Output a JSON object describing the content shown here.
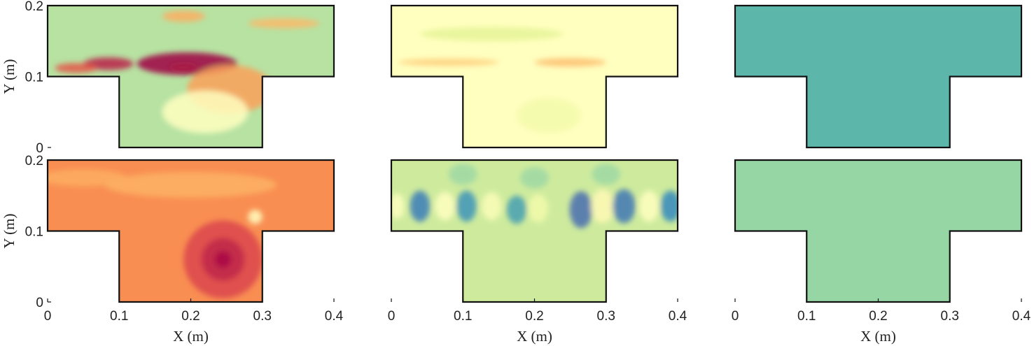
{
  "chart_data": {
    "type": "heatmap",
    "layout": "2x3 grid of field snapshots",
    "geometry": {
      "domain_x": [
        0,
        0.4
      ],
      "domain_y": [
        0,
        0.2
      ],
      "channel_y": [
        0.1,
        0.2
      ],
      "cavity_x": [
        0.1,
        0.3
      ],
      "cavity_y": [
        0,
        0.1
      ]
    },
    "colormap": [
      "#9e0142",
      "#d53e4f",
      "#f46d43",
      "#fdae61",
      "#fee08b",
      "#ffffbf",
      "#e6f598",
      "#abdda4",
      "#66c2a5",
      "#3288bd",
      "#5e4fa2"
    ],
    "xlabel": "X (m)",
    "ylabel": "Y (m)",
    "xticks": [
      "0",
      "0.1",
      "0.2",
      "0.3",
      "0.4"
    ],
    "yticks": [
      "0",
      "0.1",
      "0.2"
    ],
    "panels": [
      {
        "row": 0,
        "col": 0,
        "field": "particle vortex snapshot",
        "base_level": 0.68,
        "features": [
          {
            "x": 0.085,
            "y": 0.118,
            "rx": 0.035,
            "ry": 0.009,
            "level": 0.05
          },
          {
            "x": 0.04,
            "y": 0.112,
            "rx": 0.03,
            "ry": 0.007,
            "level": 0.15
          },
          {
            "x": 0.19,
            "y": 0.113,
            "rx": 0.02,
            "ry": 0.005,
            "level": 0.25
          },
          {
            "x": 0.195,
            "y": 0.118,
            "rx": 0.07,
            "ry": 0.016,
            "level": 0.0
          },
          {
            "x": 0.255,
            "y": 0.082,
            "rx": 0.06,
            "ry": 0.034,
            "level": 0.28
          },
          {
            "x": 0.19,
            "y": 0.185,
            "rx": 0.03,
            "ry": 0.008,
            "level": 0.3
          },
          {
            "x": 0.33,
            "y": 0.175,
            "rx": 0.05,
            "ry": 0.007,
            "level": 0.32
          },
          {
            "x": 0.22,
            "y": 0.05,
            "rx": 0.06,
            "ry": 0.03,
            "level": 0.5
          }
        ]
      },
      {
        "row": 0,
        "col": 1,
        "field": "particle vortex snapshot",
        "base_level": 0.5,
        "features": [
          {
            "x": 0.25,
            "y": 0.12,
            "rx": 0.05,
            "ry": 0.006,
            "level": 0.33
          },
          {
            "x": 0.08,
            "y": 0.12,
            "rx": 0.07,
            "ry": 0.005,
            "level": 0.36
          },
          {
            "x": 0.22,
            "y": 0.045,
            "rx": 0.045,
            "ry": 0.025,
            "level": 0.55
          },
          {
            "x": 0.14,
            "y": 0.16,
            "rx": 0.1,
            "ry": 0.01,
            "level": 0.6
          }
        ]
      },
      {
        "row": 0,
        "col": 2,
        "field": "uniform field",
        "base_level": 0.82,
        "features": []
      },
      {
        "row": 1,
        "col": 0,
        "field": "smooth contour field",
        "base_level": 0.25,
        "features": [
          {
            "x": 0.245,
            "y": 0.06,
            "rx": 0.055,
            "ry": 0.055,
            "level": 0.12
          },
          {
            "x": 0.245,
            "y": 0.06,
            "rx": 0.03,
            "ry": 0.03,
            "level": 0.06
          },
          {
            "x": 0.245,
            "y": 0.06,
            "rx": 0.012,
            "ry": 0.012,
            "level": 0.02
          },
          {
            "x": 0.29,
            "y": 0.12,
            "rx": 0.01,
            "ry": 0.01,
            "level": 0.5
          },
          {
            "x": 0.2,
            "y": 0.165,
            "rx": 0.12,
            "ry": 0.018,
            "level": 0.31
          },
          {
            "x": 0.05,
            "y": 0.175,
            "rx": 0.06,
            "ry": 0.012,
            "level": 0.3
          }
        ]
      },
      {
        "row": 1,
        "col": 1,
        "field": "alternating mode",
        "base_level": 0.64,
        "features": [
          {
            "x": 0.008,
            "y": 0.135,
            "rx": 0.01,
            "ry": 0.018,
            "level": 0.5
          },
          {
            "x": 0.04,
            "y": 0.135,
            "rx": 0.014,
            "ry": 0.022,
            "level": 0.92
          },
          {
            "x": 0.075,
            "y": 0.135,
            "rx": 0.014,
            "ry": 0.02,
            "level": 0.5
          },
          {
            "x": 0.105,
            "y": 0.135,
            "rx": 0.014,
            "ry": 0.022,
            "level": 0.88
          },
          {
            "x": 0.14,
            "y": 0.135,
            "rx": 0.014,
            "ry": 0.02,
            "level": 0.52
          },
          {
            "x": 0.175,
            "y": 0.13,
            "rx": 0.014,
            "ry": 0.02,
            "level": 0.86
          },
          {
            "x": 0.205,
            "y": 0.132,
            "rx": 0.014,
            "ry": 0.02,
            "level": 0.55
          },
          {
            "x": 0.265,
            "y": 0.13,
            "rx": 0.016,
            "ry": 0.026,
            "level": 0.95
          },
          {
            "x": 0.295,
            "y": 0.135,
            "rx": 0.016,
            "ry": 0.024,
            "level": 0.48
          },
          {
            "x": 0.325,
            "y": 0.135,
            "rx": 0.016,
            "ry": 0.024,
            "level": 0.93
          },
          {
            "x": 0.36,
            "y": 0.135,
            "rx": 0.014,
            "ry": 0.022,
            "level": 0.5
          },
          {
            "x": 0.39,
            "y": 0.135,
            "rx": 0.014,
            "ry": 0.022,
            "level": 0.9
          },
          {
            "x": 0.1,
            "y": 0.18,
            "rx": 0.02,
            "ry": 0.015,
            "level": 0.72
          },
          {
            "x": 0.2,
            "y": 0.175,
            "rx": 0.02,
            "ry": 0.015,
            "level": 0.72
          },
          {
            "x": 0.3,
            "y": 0.18,
            "rx": 0.02,
            "ry": 0.015,
            "level": 0.72
          }
        ]
      },
      {
        "row": 1,
        "col": 2,
        "field": "uniform field",
        "base_level": 0.73,
        "features": []
      }
    ]
  }
}
